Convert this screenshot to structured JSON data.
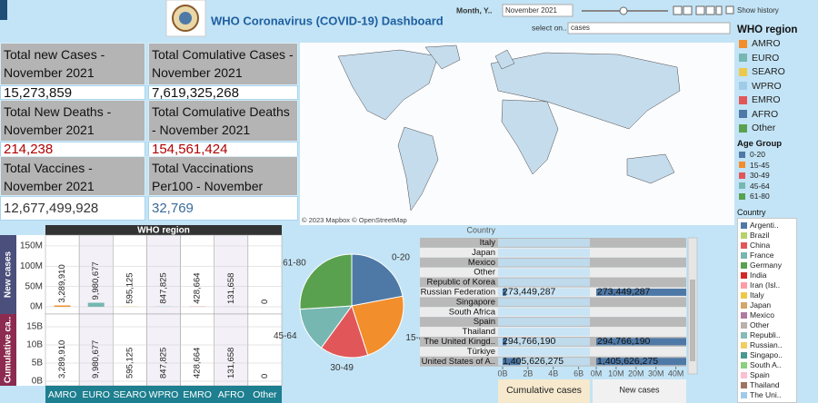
{
  "header": {
    "title": "WHO Coronavirus (COVID-19) Dashboard",
    "month_label": "Month, Y..",
    "month_value": "November 2021",
    "show_history": "Show history",
    "select_label": "select on..",
    "select_value": "cases"
  },
  "kpis": [
    {
      "label": "Total new Cases - November 2021",
      "value": "15,273,859"
    },
    {
      "label": "Total Comulative Cases - November 2021",
      "value": "7,619,325,268"
    },
    {
      "label": "Total New Deaths - November 2021",
      "value": "214,238"
    },
    {
      "label": "Total Comulative Deaths - November 2021",
      "value": "154,561,424"
    },
    {
      "label": "Total Vaccines - November 2021",
      "value": "12,677,499,928"
    },
    {
      "label": "Total Vaccinations Per100 - November 2021",
      "value": "32,769"
    }
  ],
  "map": {
    "attribution": "© 2023 Mapbox © OpenStreetMap"
  },
  "legends": {
    "region": {
      "title": "WHO region",
      "items": [
        {
          "name": "AMRO",
          "color": "#f28e2b"
        },
        {
          "name": "EURO",
          "color": "#76b7b2"
        },
        {
          "name": "SEARO",
          "color": "#edc948"
        },
        {
          "name": "WPRO",
          "color": "#a0cbe8"
        },
        {
          "name": "EMRO",
          "color": "#e15759"
        },
        {
          "name": "AFRO",
          "color": "#4e79a7"
        },
        {
          "name": "Other",
          "color": "#59a14f"
        }
      ]
    },
    "age": {
      "title": "Age Group",
      "items": [
        {
          "name": "0-20",
          "color": "#4e79a7"
        },
        {
          "name": "15-45",
          "color": "#f28e2b"
        },
        {
          "name": "30-49",
          "color": "#e15759"
        },
        {
          "name": "45-64",
          "color": "#76b7b2"
        },
        {
          "name": "61-80",
          "color": "#59a14f"
        }
      ]
    },
    "country": {
      "title": "Country",
      "items": [
        {
          "name": "Argenti..",
          "color": "#4e79a7"
        },
        {
          "name": "Brazil",
          "color": "#b6d36a"
        },
        {
          "name": "China",
          "color": "#e15759"
        },
        {
          "name": "France",
          "color": "#76b7b2"
        },
        {
          "name": "Germany",
          "color": "#59a14f"
        },
        {
          "name": "India",
          "color": "#d62728"
        },
        {
          "name": "Iran (Isl..",
          "color": "#ff9da7"
        },
        {
          "name": "Italy",
          "color": "#edc948"
        },
        {
          "name": "Japan",
          "color": "#d4a66a"
        },
        {
          "name": "Mexico",
          "color": "#b07aa1"
        },
        {
          "name": "Other",
          "color": "#bab0ac"
        },
        {
          "name": "Republi..",
          "color": "#86bcb6"
        },
        {
          "name": "Russian..",
          "color": "#f1ce63"
        },
        {
          "name": "Singapo..",
          "color": "#499894"
        },
        {
          "name": "South A..",
          "color": "#8cd17d"
        },
        {
          "name": "Spain",
          "color": "#fabfd2"
        },
        {
          "name": "Thailand",
          "color": "#9d7660"
        },
        {
          "name": "The Uni..",
          "color": "#a0cbe8"
        }
      ]
    }
  },
  "chart_data": [
    {
      "type": "bar",
      "title": "WHO region",
      "categories": [
        "AMRO",
        "EURO",
        "SEARO",
        "WPRO",
        "EMRO",
        "AFRO",
        "Other"
      ],
      "series": [
        {
          "name": "New cases",
          "values": [
            3289910,
            9980677,
            595125,
            847825,
            428664,
            131658,
            0
          ],
          "value_labels": [
            "3,289,910",
            "9,980,677",
            "595,125",
            "847,825",
            "428,664",
            "131,658",
            "0"
          ]
        },
        {
          "name": "Cumulative ca..",
          "axis": "y2",
          "values": [
            3289910,
            9980677,
            595125,
            847825,
            428664,
            131658,
            0
          ],
          "value_labels": [
            "3,289,910",
            "9,980,677",
            "595,125",
            "847,825",
            "428,664",
            "131,658",
            "0"
          ]
        }
      ],
      "ylim": [
        0,
        170000000
      ],
      "yticks": [
        {
          "value": 0,
          "label": "0M"
        },
        {
          "value": 50000000,
          "label": "50M"
        },
        {
          "value": 100000000,
          "label": "100M"
        },
        {
          "value": 150000000,
          "label": "150M"
        }
      ],
      "y2lim": [
        0,
        17000000000
      ],
      "y2ticks": [
        {
          "value": 0,
          "label": "0B"
        },
        {
          "value": 5000000000,
          "label": "5B"
        },
        {
          "value": 10000000000,
          "label": "10B"
        },
        {
          "value": 15000000000,
          "label": "15B"
        }
      ],
      "grid": true
    },
    {
      "type": "pie",
      "categories": [
        "0-20",
        "15-45",
        "30-49",
        "45-64",
        "61-80"
      ],
      "values": [
        22,
        23,
        15,
        14,
        26
      ]
    },
    {
      "type": "hbar",
      "ylabel": "Country",
      "categories": [
        "Italy",
        "Japan",
        "Mexico",
        "Other",
        "Republic of Korea",
        "Russian Federation",
        "Singapore",
        "South Africa",
        "Spain",
        "Thailand",
        "The United Kingd..",
        "Türkiye",
        "United States of A.."
      ],
      "series": [
        {
          "name": "Cumulative cases",
          "color": "#4e79a7",
          "values": [
            null,
            null,
            null,
            null,
            null,
            273449287,
            null,
            null,
            null,
            null,
            294766190,
            null,
            1405626275
          ],
          "value_labels": [
            null,
            null,
            null,
            null,
            null,
            "273,449,287",
            null,
            null,
            null,
            null,
            "294,766,190",
            null,
            "1,405,626,275"
          ]
        },
        {
          "name": "New cases",
          "color": "#4e79a7",
          "values": [
            null,
            null,
            null,
            null,
            null,
            273449287,
            null,
            null,
            null,
            null,
            294766190,
            null,
            1405626275
          ],
          "value_labels": [
            null,
            null,
            null,
            null,
            null,
            "273,449,287",
            null,
            null,
            null,
            null,
            "294,766,190",
            null,
            "1,405,626,275"
          ]
        }
      ],
      "xlim": [
        0,
        6600000000
      ],
      "xticks": [
        {
          "value": 0,
          "label": "0B"
        },
        {
          "value": 2000000000,
          "label": "2B"
        },
        {
          "value": 4000000000,
          "label": "4B"
        },
        {
          "value": 6000000000,
          "label": "6B"
        }
      ],
      "x2lim": [
        0,
        42000000
      ],
      "x2ticks": [
        {
          "value": 0,
          "label": "0M"
        },
        {
          "value": 10000000,
          "label": "10M"
        },
        {
          "value": 20000000,
          "label": "20M"
        },
        {
          "value": 30000000,
          "label": "30M"
        },
        {
          "value": 40000000,
          "label": "40M"
        }
      ]
    }
  ]
}
